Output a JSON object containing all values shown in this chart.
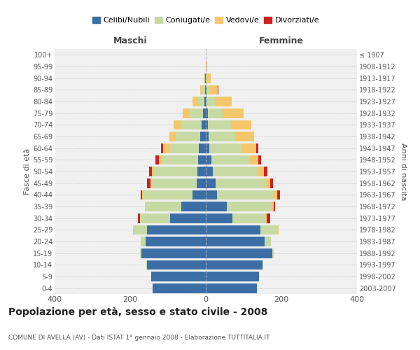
{
  "age_groups": [
    "0-4",
    "5-9",
    "10-14",
    "15-19",
    "20-24",
    "25-29",
    "30-34",
    "35-39",
    "40-44",
    "45-49",
    "50-54",
    "55-59",
    "60-64",
    "65-69",
    "70-74",
    "75-79",
    "80-84",
    "85-89",
    "90-94",
    "95-99",
    "100+"
  ],
  "birth_years": [
    "2003-2007",
    "1998-2002",
    "1993-1997",
    "1988-1992",
    "1983-1987",
    "1978-1982",
    "1973-1977",
    "1968-1972",
    "1963-1967",
    "1958-1962",
    "1953-1957",
    "1948-1952",
    "1943-1947",
    "1938-1942",
    "1933-1937",
    "1928-1932",
    "1923-1927",
    "1918-1922",
    "1913-1917",
    "1908-1912",
    "≤ 1907"
  ],
  "colors": {
    "celibe": "#3a6ea5",
    "coniugato": "#c8daa4",
    "vedovo": "#f5c76a",
    "divorziato": "#cc2222"
  },
  "males": {
    "celibe": [
      140,
      145,
      155,
      170,
      160,
      155,
      95,
      65,
      35,
      25,
      22,
      20,
      18,
      14,
      12,
      7,
      3,
      1,
      1,
      0,
      0
    ],
    "coniugato": [
      0,
      0,
      2,
      4,
      12,
      35,
      80,
      95,
      130,
      120,
      115,
      95,
      80,
      65,
      55,
      35,
      18,
      8,
      3,
      0,
      0
    ],
    "vedovo": [
      0,
      0,
      0,
      0,
      0,
      2,
      0,
      2,
      3,
      2,
      5,
      10,
      15,
      18,
      18,
      20,
      15,
      5,
      2,
      0,
      0
    ],
    "divorziato": [
      0,
      0,
      0,
      0,
      0,
      0,
      5,
      0,
      4,
      8,
      8,
      8,
      5,
      0,
      0,
      0,
      0,
      0,
      0,
      0,
      0
    ]
  },
  "females": {
    "nubile": [
      135,
      140,
      150,
      175,
      155,
      145,
      70,
      55,
      30,
      25,
      18,
      14,
      10,
      8,
      6,
      5,
      2,
      1,
      0,
      0,
      0
    ],
    "coniugata": [
      0,
      0,
      2,
      5,
      18,
      45,
      90,
      120,
      150,
      135,
      120,
      100,
      85,
      70,
      60,
      40,
      22,
      10,
      5,
      2,
      0
    ],
    "vedova": [
      0,
      0,
      0,
      0,
      0,
      2,
      2,
      4,
      8,
      10,
      15,
      25,
      38,
      50,
      55,
      55,
      45,
      20,
      8,
      2,
      0
    ],
    "divorziata": [
      0,
      0,
      0,
      0,
      0,
      0,
      8,
      5,
      8,
      8,
      10,
      8,
      5,
      0,
      0,
      0,
      0,
      2,
      0,
      0,
      0
    ]
  },
  "title": "Popolazione per età, sesso e stato civile - 2008",
  "subtitle": "COMUNE DI AVELLA (AV) - Dati ISTAT 1° gennaio 2008 - Elaborazione TUTTITALIA.IT",
  "xlabel_left": "Maschi",
  "xlabel_right": "Femmine",
  "ylabel_left": "Fasce di età",
  "ylabel_right": "Anni di nascita",
  "xlim": 400,
  "legend_labels": [
    "Celibi/Nubili",
    "Coniugati/e",
    "Vedovi/e",
    "Divorziati/e"
  ],
  "background_color": "#ffffff",
  "plot_bg_color": "#f0f0f0"
}
